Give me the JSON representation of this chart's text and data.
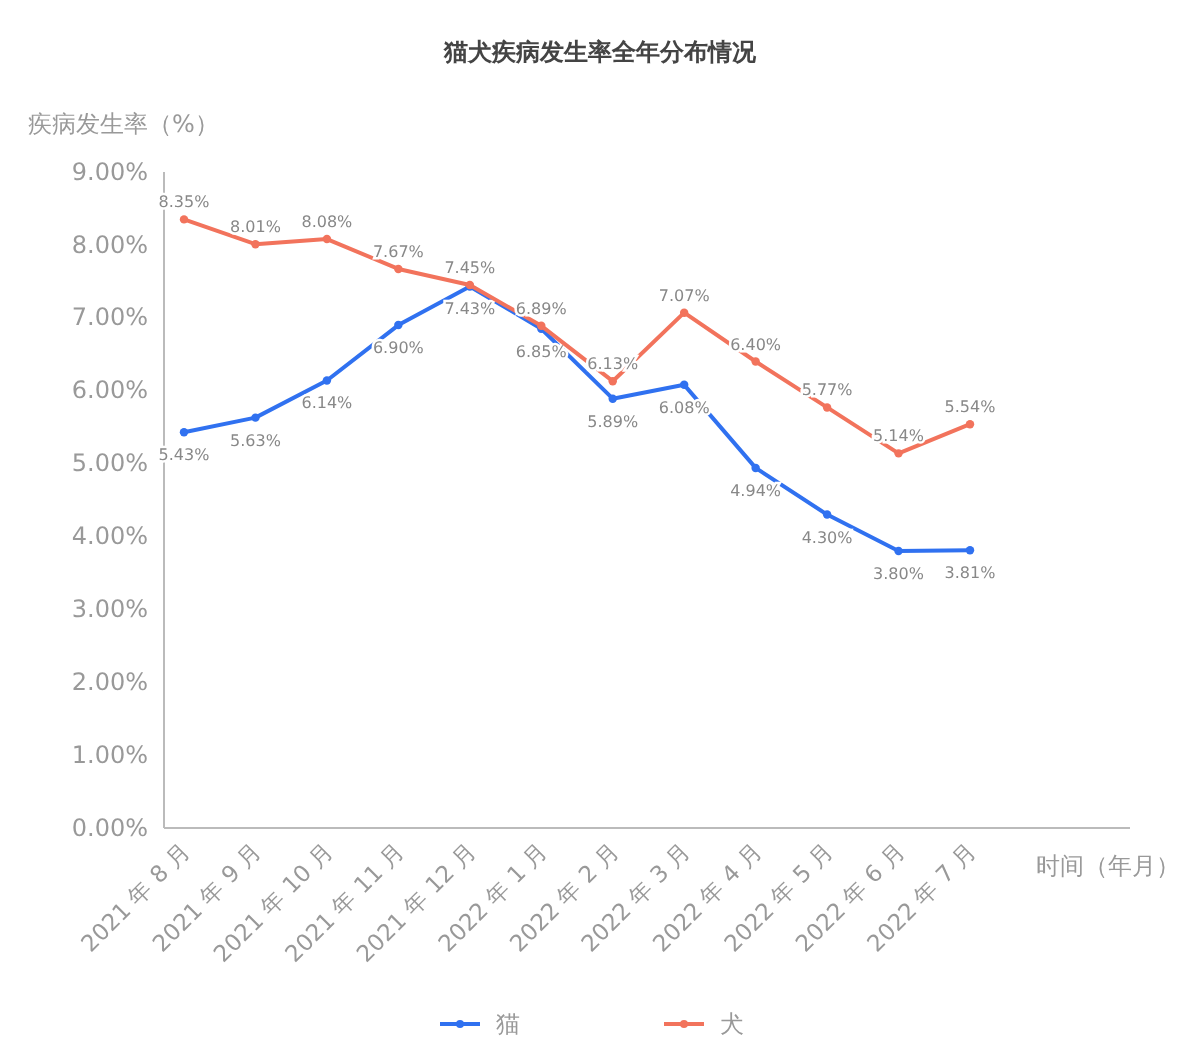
{
  "chart_data": {
    "type": "line",
    "title": "猫犬疾病发生率全年分布情况",
    "xlabel": "时间（年月）",
    "ylabel": "疾病发生率（%）",
    "categories": [
      "2021 年 8 月",
      "2021 年 9 月",
      "2021 年 10 月",
      "2021 年 11 月",
      "2021 年 12 月",
      "2022 年 1 月",
      "2022 年 2 月",
      "2022 年 3 月",
      "2022 年 4 月",
      "2022 年 5 月",
      "2022 年 6 月",
      "2022 年 7 月"
    ],
    "series": [
      {
        "name": "猫",
        "color": "#3071f0",
        "values": [
          5.43,
          5.63,
          6.14,
          6.9,
          7.43,
          6.85,
          5.89,
          6.08,
          4.94,
          4.3,
          3.8,
          3.81
        ],
        "value_labels": [
          "5.43%",
          "5.63%",
          "6.14%",
          "6.90%",
          "7.43%",
          "6.85%",
          "5.89%",
          "6.08%",
          "4.94%",
          "4.30%",
          "3.80%",
          "3.81%"
        ]
      },
      {
        "name": "犬",
        "color": "#f2735c",
        "values": [
          8.35,
          8.01,
          8.08,
          7.67,
          7.45,
          6.89,
          6.13,
          7.07,
          6.4,
          5.77,
          5.14,
          5.54
        ],
        "value_labels": [
          "8.35%",
          "8.01%",
          "8.08%",
          "7.67%",
          "7.45%",
          "6.89%",
          "6.13%",
          "7.07%",
          "6.40%",
          "5.77%",
          "5.14%",
          "5.54%"
        ]
      }
    ],
    "ylim": [
      0,
      9
    ],
    "yticks": [
      {
        "value": 0,
        "label": "0.00%"
      },
      {
        "value": 1,
        "label": "1.00%"
      },
      {
        "value": 2,
        "label": "2.00%"
      },
      {
        "value": 3,
        "label": "3.00%"
      },
      {
        "value": 4,
        "label": "4.00%"
      },
      {
        "value": 5,
        "label": "5.00%"
      },
      {
        "value": 6,
        "label": "6.00%"
      },
      {
        "value": 7,
        "label": "7.00%"
      },
      {
        "value": 8,
        "label": "8.00%"
      },
      {
        "value": 9,
        "label": "9.00%"
      }
    ],
    "grid": false,
    "legend": "bottom",
    "marker": "circle",
    "line_style": "solid"
  }
}
